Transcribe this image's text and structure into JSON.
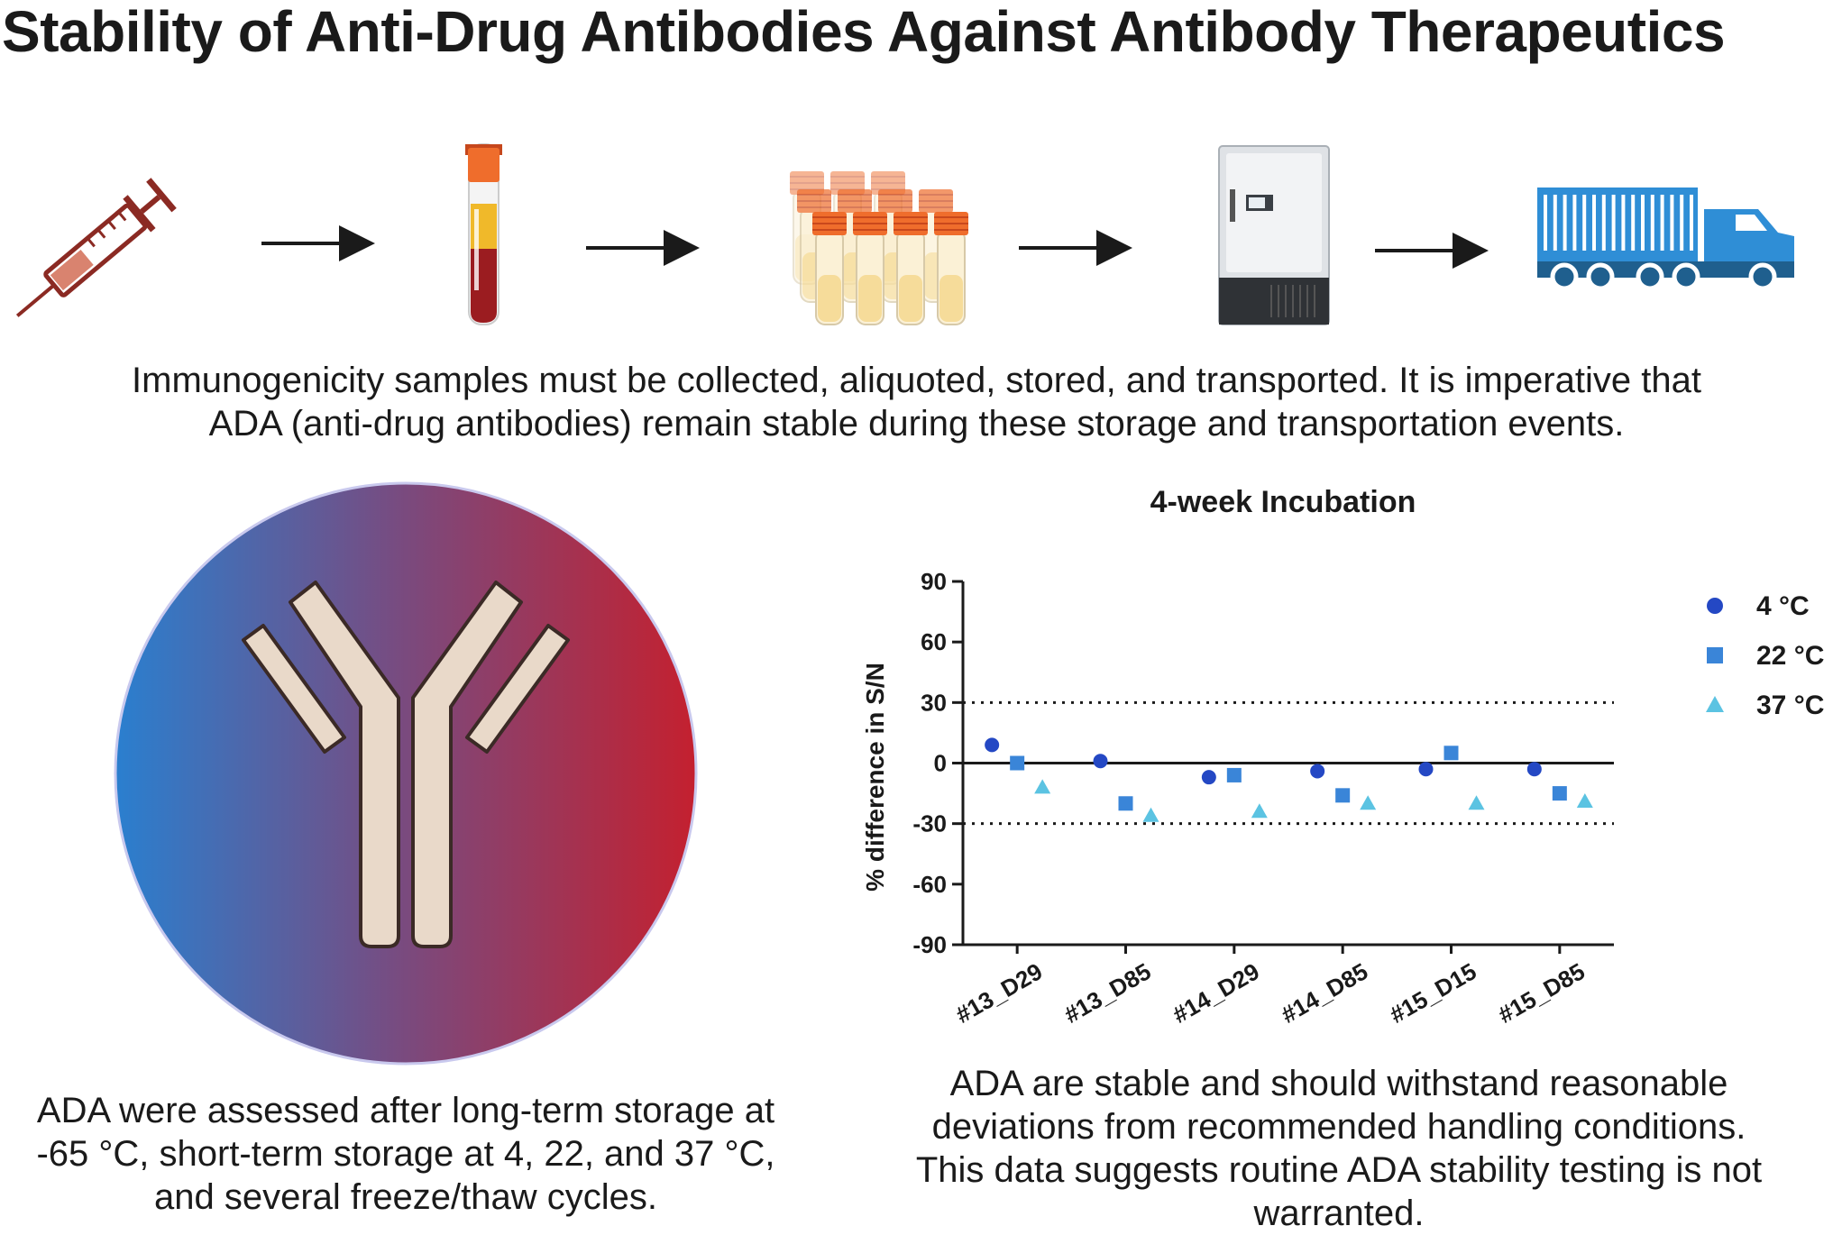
{
  "title": "Stability of Anti-Drug Antibodies Against Antibody Therapeutics",
  "workflow": {
    "steps": [
      "syringe-icon",
      "blood-tube-icon",
      "aliquot-tubes-icon",
      "freezer-icon",
      "truck-icon"
    ],
    "caption_line1": "Immunogenicity samples must be collected, aliquoted, stored, and transported. It is imperative that",
    "caption_line2": "ADA (anti-drug antibodies) remain stable during these storage and transportation events."
  },
  "left_panel": {
    "icon": "antibody-icon",
    "gradient": [
      "#2a7fcf",
      "#c4202f"
    ],
    "caption_line1": "ADA were assessed after long-term storage at",
    "caption_line2": "-65 °C, short-term storage at 4, 22, and 37 °C,",
    "caption_line3": "and several freeze/thaw cycles."
  },
  "chart_data": {
    "type": "scatter",
    "title": "4-week Incubation",
    "xlabel": "",
    "ylabel": "% difference in S/N",
    "ylim": [
      -90,
      90
    ],
    "yticks": [
      "90",
      "60",
      "30",
      "0",
      "-30",
      "-60",
      "-90"
    ],
    "categories": [
      "#13_D29",
      "#13_D85",
      "#14_D29",
      "#14_D85",
      "#15_D15",
      "#15_D85"
    ],
    "reference_lines": [
      30,
      0,
      -30
    ],
    "legend_position": "top-right",
    "series": [
      {
        "name": "4 °C",
        "marker": "circle",
        "color": "#2448c4",
        "values": [
          9,
          1,
          -7,
          -4,
          -3,
          -3
        ]
      },
      {
        "name": "22 °C",
        "marker": "square",
        "color": "#3a85d8",
        "values": [
          0,
          -20,
          -6,
          -16,
          5,
          -15
        ]
      },
      {
        "name": "37 °C",
        "marker": "triangle",
        "color": "#5bc3e2",
        "values": [
          -12,
          -26,
          -24,
          -20,
          -20,
          -19
        ]
      }
    ]
  },
  "right_panel": {
    "caption_line1": "ADA are stable and should withstand reasonable",
    "caption_line2": "deviations from recommended handling conditions.",
    "caption_line3": "This data suggests routine ADA stability testing is not",
    "caption_line4": "warranted."
  }
}
